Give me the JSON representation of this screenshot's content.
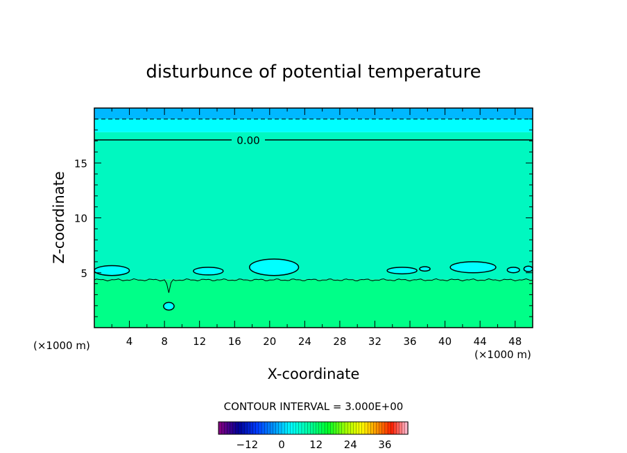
{
  "chart_data": {
    "type": "heatmap",
    "title": "disturbunce of potential temperature",
    "xlabel": "X-coordinate",
    "ylabel": "Z-coordinate",
    "x_unit_left": "(×1000 m)",
    "x_unit_right": "(×1000 m)",
    "xlim": [
      0,
      50
    ],
    "ylim": [
      0,
      20
    ],
    "x_ticks": [
      4,
      8,
      12,
      16,
      20,
      24,
      28,
      32,
      36,
      40,
      44,
      48
    ],
    "y_ticks": [
      5,
      10,
      15
    ],
    "zero_contour_label": "0.00",
    "contour_interval_text": "CONTOUR INTERVAL = 3.000E+00",
    "colorbar": {
      "min": -22,
      "max": 44,
      "ticks": [
        -12,
        0,
        12,
        24,
        36
      ]
    },
    "field_bands": [
      {
        "z_from": 0,
        "z_to": 4.4,
        "color": "#00ff88"
      },
      {
        "z_from": 4.4,
        "z_to": 17.8,
        "color": "#00f8c0"
      },
      {
        "z_from": 17.8,
        "z_to": 19.0,
        "color": "#00ffff"
      },
      {
        "z_from": 19.0,
        "z_to": 20,
        "color": "#00b8ff"
      }
    ],
    "zero_contour_z": 17.1,
    "dashed_contour_z": 19.0,
    "low_level_contour_z": 4.35,
    "closed_contours": [
      {
        "x_center": 2.0,
        "z_center": 5.2,
        "half_width": 2.0,
        "half_height": 0.45
      },
      {
        "x_center": 13.0,
        "z_center": 5.15,
        "half_width": 1.7,
        "half_height": 0.35
      },
      {
        "x_center": 20.5,
        "z_center": 5.5,
        "half_width": 2.8,
        "half_height": 0.75
      },
      {
        "x_center": 35.1,
        "z_center": 5.2,
        "half_width": 1.7,
        "half_height": 0.3
      },
      {
        "x_center": 37.7,
        "z_center": 5.35,
        "half_width": 0.6,
        "half_height": 0.2
      },
      {
        "x_center": 43.2,
        "z_center": 5.5,
        "half_width": 2.6,
        "half_height": 0.5
      },
      {
        "x_center": 47.8,
        "z_center": 5.25,
        "half_width": 0.7,
        "half_height": 0.25
      },
      {
        "x_center": 49.5,
        "z_center": 5.35,
        "half_width": 0.5,
        "half_height": 0.25
      },
      {
        "x_center": 8.5,
        "z_center": 1.95,
        "half_width": 0.6,
        "half_height": 0.35
      }
    ]
  }
}
